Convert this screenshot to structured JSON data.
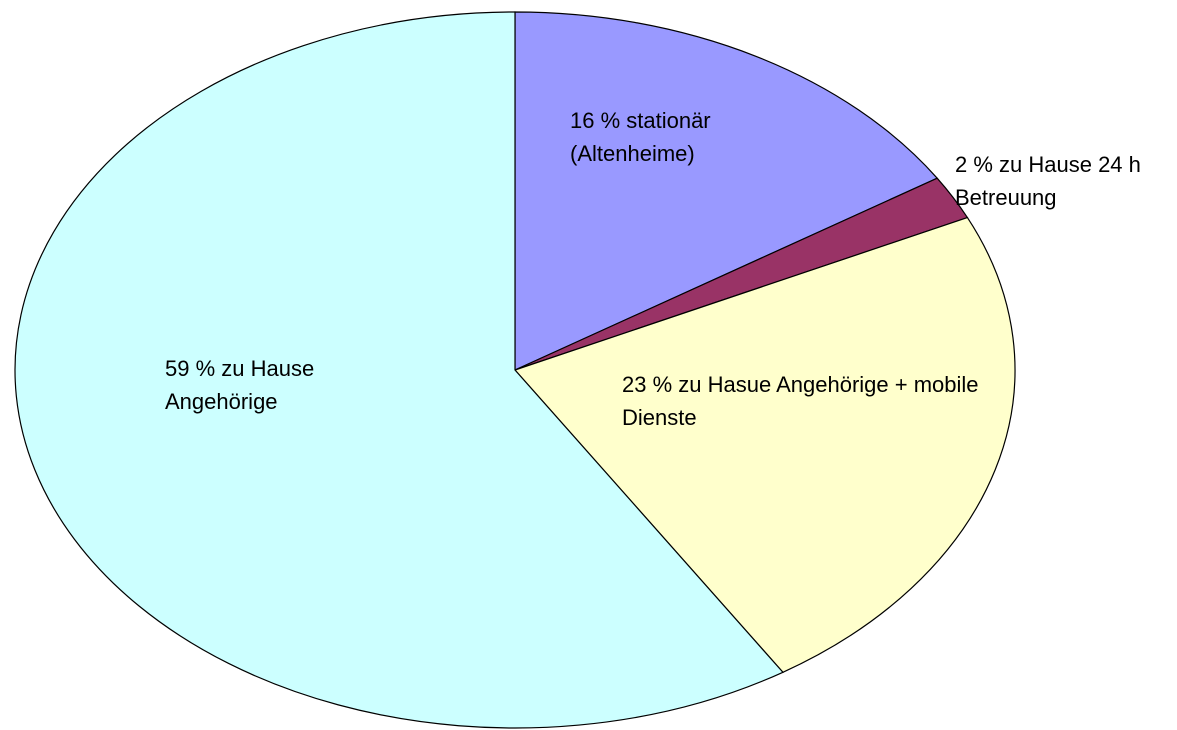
{
  "chart_data": {
    "type": "pie",
    "values": [
      16,
      2,
      23,
      59
    ],
    "value_labels": [
      "16 % stationär (Altenheime)",
      "2 % zu Hause 24 h Betreuung",
      "23 % zu Hasue Angehörige + mobile Dienste",
      "59 % zu Hause Angehörige"
    ],
    "colors": [
      "#9999ff",
      "#993366",
      "#ffffcc",
      "#ccffff"
    ]
  }
}
